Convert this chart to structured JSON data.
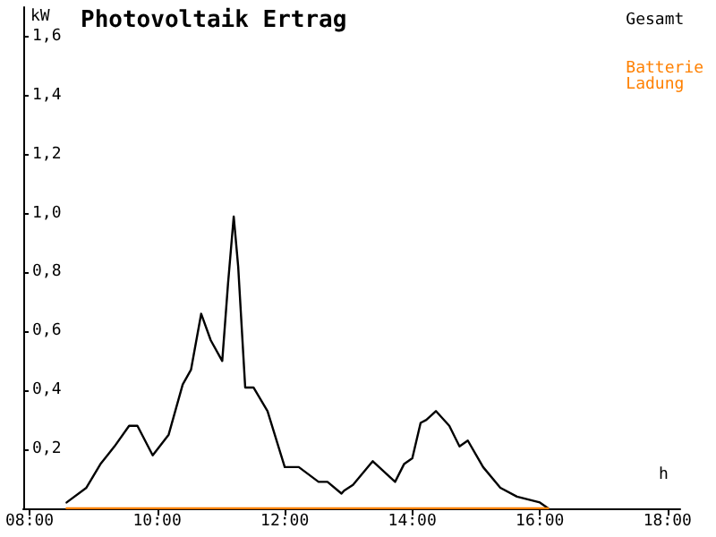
{
  "chart_data": {
    "type": "line",
    "title": "Photovoltaik Ertrag",
    "xlabel": "h",
    "ylabel": "kW",
    "xlim": [
      7.9,
      18.2
    ],
    "ylim": [
      0,
      1.7
    ],
    "xticks": [
      {
        "value": 8,
        "label": "08:00"
      },
      {
        "value": 10,
        "label": "10:00"
      },
      {
        "value": 12,
        "label": "12:00"
      },
      {
        "value": 14,
        "label": "14:00"
      },
      {
        "value": 16,
        "label": "16:00"
      },
      {
        "value": 18,
        "label": "18:00"
      }
    ],
    "yticks": [
      {
        "value": 0.2,
        "label": "0,2"
      },
      {
        "value": 0.4,
        "label": "0,4"
      },
      {
        "value": 0.6,
        "label": "0,6"
      },
      {
        "value": 0.8,
        "label": "0,8"
      },
      {
        "value": 1.0,
        "label": "1,0"
      },
      {
        "value": 1.2,
        "label": "1,2"
      },
      {
        "value": 1.4,
        "label": "1,4"
      },
      {
        "value": 1.6,
        "label": "1,6"
      }
    ],
    "grid": false,
    "legend": "top right",
    "marker": "none",
    "line_style": "solid",
    "series": [
      {
        "name": "Gesamt",
        "color": "#000000",
        "x": [
          8.58,
          8.89,
          9.11,
          9.33,
          9.56,
          9.69,
          9.93,
          10.18,
          10.4,
          10.53,
          10.69,
          10.84,
          11.02,
          11.11,
          11.2,
          11.27,
          11.38,
          11.51,
          11.73,
          12.0,
          12.22,
          12.53,
          12.67,
          12.89,
          12.93,
          13.07,
          13.38,
          13.73,
          13.87,
          14.0,
          14.13,
          14.22,
          14.37,
          14.58,
          14.74,
          14.87,
          15.11,
          15.38,
          15.64,
          16.0,
          16.13
        ],
        "values": [
          0.02,
          0.07,
          0.15,
          0.21,
          0.28,
          0.28,
          0.18,
          0.25,
          0.42,
          0.47,
          0.66,
          0.57,
          0.5,
          0.76,
          0.99,
          0.82,
          0.41,
          0.41,
          0.33,
          0.14,
          0.14,
          0.09,
          0.09,
          0.05,
          0.06,
          0.08,
          0.16,
          0.09,
          0.15,
          0.17,
          0.29,
          0.3,
          0.33,
          0.28,
          0.21,
          0.23,
          0.14,
          0.07,
          0.04,
          0.02,
          0
        ]
      },
      {
        "name": "Batterie Ladung",
        "color": "#ff8000",
        "x": [
          8.58,
          16.13
        ],
        "values": [
          0,
          0
        ]
      }
    ]
  }
}
